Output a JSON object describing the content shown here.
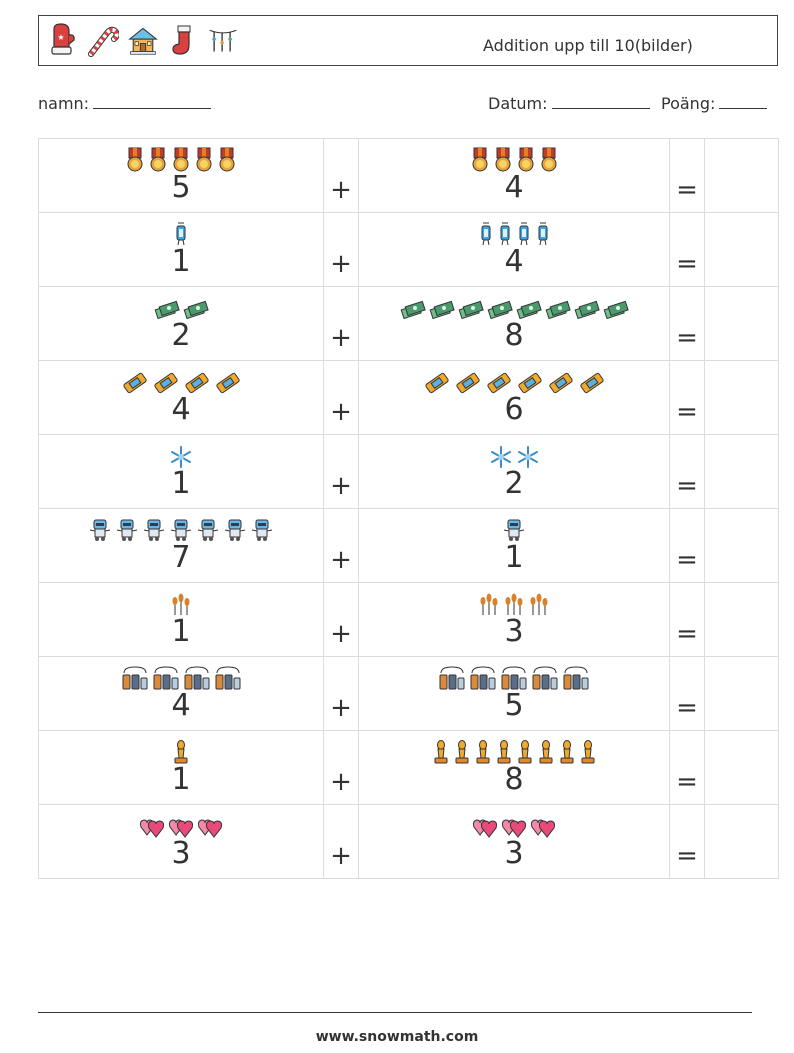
{
  "header": {
    "title": "Addition upp till 10(bilder)",
    "icons": [
      "mitten-icon",
      "candy-cane-icon",
      "house-icon",
      "stocking-icon",
      "lights-icon"
    ]
  },
  "info": {
    "name_label": "namn:",
    "date_label": "Datum:",
    "score_label": "Poäng:"
  },
  "operators": {
    "plus": "+",
    "equals": "="
  },
  "rows": [
    {
      "a": 5,
      "b": 4,
      "icon": "medal-icon",
      "color": "#e8a33b"
    },
    {
      "a": 1,
      "b": 4,
      "icon": "lantern-icon",
      "color": "#3ba3e8"
    },
    {
      "a": 2,
      "b": 8,
      "icon": "money-icon",
      "color": "#4a9a6e"
    },
    {
      "a": 4,
      "b": 6,
      "icon": "ticket-icon",
      "color": "#f0a92c"
    },
    {
      "a": 1,
      "b": 2,
      "icon": "snowflake-icon",
      "color": "#3c8cc9"
    },
    {
      "a": 7,
      "b": 1,
      "icon": "robot-icon",
      "color": "#6ab7e8"
    },
    {
      "a": 1,
      "b": 3,
      "icon": "wheat-icon",
      "color": "#d9822b"
    },
    {
      "a": 4,
      "b": 5,
      "icon": "bottles-icon",
      "color": "#5a6e8a"
    },
    {
      "a": 1,
      "b": 8,
      "icon": "chess-bishop-icon",
      "color": "#f0a92c"
    },
    {
      "a": 3,
      "b": 3,
      "icon": "hearts-icon",
      "color": "#e84a7a"
    }
  ],
  "footer": {
    "url": "www.snowmath.com"
  }
}
